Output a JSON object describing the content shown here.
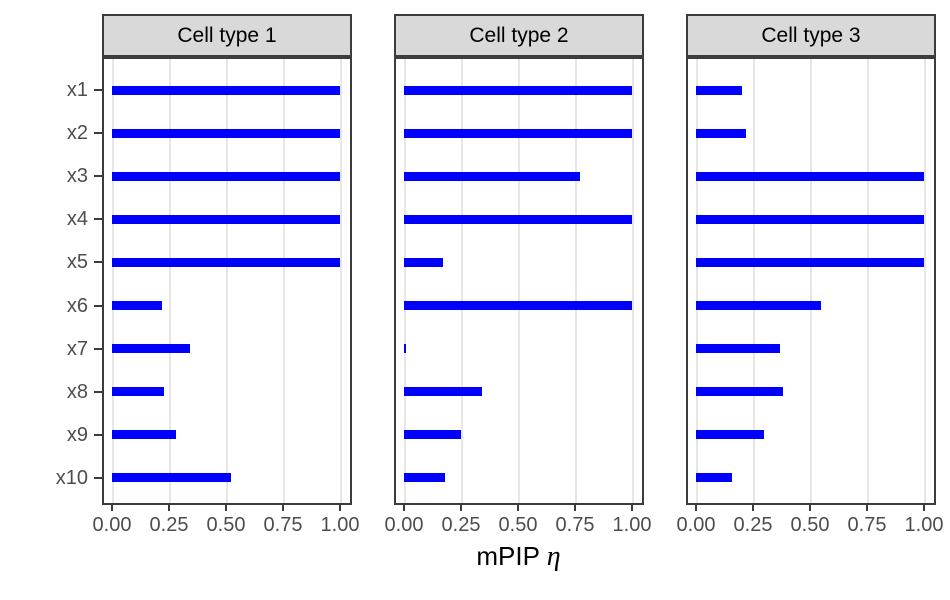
{
  "chart_data": {
    "type": "bar",
    "orientation": "horizontal",
    "facet_titles": [
      "Cell type 1",
      "Cell type 2",
      "Cell type 3"
    ],
    "categories": [
      "x1",
      "x2",
      "x3",
      "x4",
      "x5",
      "x6",
      "x7",
      "x8",
      "x9",
      "x10"
    ],
    "series": [
      {
        "name": "Cell type 1",
        "values": [
          1.0,
          1.0,
          1.0,
          1.0,
          1.0,
          0.22,
          0.34,
          0.23,
          0.28,
          0.52
        ]
      },
      {
        "name": "Cell type 2",
        "values": [
          1.0,
          1.0,
          0.77,
          1.0,
          0.17,
          1.0,
          0.01,
          0.34,
          0.25,
          0.18
        ]
      },
      {
        "name": "Cell type 3",
        "values": [
          0.2,
          0.22,
          1.0,
          1.0,
          1.0,
          0.55,
          0.37,
          0.38,
          0.3,
          0.16
        ]
      }
    ],
    "x_ticks": [
      "0.00",
      "0.25",
      "0.50",
      "0.75",
      "1.00"
    ],
    "x_tick_values": [
      0,
      0.25,
      0.5,
      0.75,
      1
    ],
    "xlim": [
      0,
      1
    ],
    "xlabel": "mPIP η",
    "xlabel_main": "mPIP",
    "xlabel_symbol": "η",
    "ylabel": "",
    "grid": "vertical-major-only",
    "legend": "none",
    "bar_color": "#0000FF"
  },
  "colors": {
    "background": "#FFFFFF",
    "bar": "#0000FF",
    "strip_bg": "#D9D9D9",
    "border": "#3C3C3C",
    "grid": "#E6E6E6",
    "axis_text": "#4D4D4D",
    "title_text": "#000000"
  }
}
